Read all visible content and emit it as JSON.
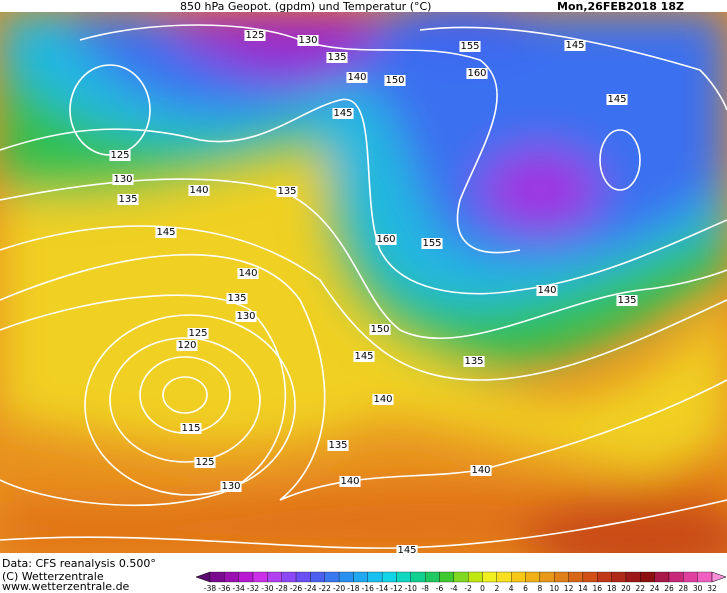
{
  "header": {
    "title": "850 hPa Geopot. (gpdm) und Temperatur (°C)",
    "date": "Mon,26FEB2018 18Z"
  },
  "footer": {
    "data": "Data: CFS reanalysis 0.500°",
    "copyright": "(C) Wetterzentrale",
    "url": "www.wetterzentrale.de"
  },
  "colorbar": {
    "labels": [
      "-38",
      "-36",
      "-34",
      "-32",
      "-30",
      "-28",
      "-26",
      "-24",
      "-22",
      "-20",
      "-18",
      "-16",
      "-14",
      "-12",
      "-10",
      "-8",
      "-6",
      "-4",
      "-2",
      "0",
      "2",
      "4",
      "6",
      "8",
      "10",
      "12",
      "14",
      "16",
      "18",
      "20",
      "22",
      "24",
      "26",
      "28",
      "30",
      "32"
    ],
    "colors": [
      "#5a0a6e",
      "#7a0a8e",
      "#9a10b0",
      "#b818d0",
      "#cc30e8",
      "#b040f0",
      "#8c48f4",
      "#6a50f4",
      "#4c60f0",
      "#3a78f0",
      "#2a90f0",
      "#20a8f0",
      "#18c0f0",
      "#10d4e8",
      "#10d8c0",
      "#10d090",
      "#20c860",
      "#40c830",
      "#80d820",
      "#c0e810",
      "#f0f020",
      "#f8e020",
      "#f8c818",
      "#f0b018",
      "#e89818",
      "#e08018",
      "#d86818",
      "#d05018",
      "#c03818",
      "#b02818",
      "#9c1818",
      "#8c1010",
      "#a81848",
      "#c82878",
      "#e040a0",
      "#f060c0",
      "#f890d8"
    ]
  },
  "map": {
    "contour_labels": [
      "125",
      "130",
      "135",
      "140",
      "150",
      "155",
      "160",
      "145",
      "145",
      "125",
      "130",
      "135",
      "140",
      "135",
      "145",
      "145",
      "160",
      "155",
      "140",
      "135",
      "130",
      "125",
      "120",
      "150",
      "145",
      "140",
      "135",
      "135",
      "140",
      "115",
      "135",
      "125",
      "130",
      "140",
      "140",
      "145"
    ]
  }
}
